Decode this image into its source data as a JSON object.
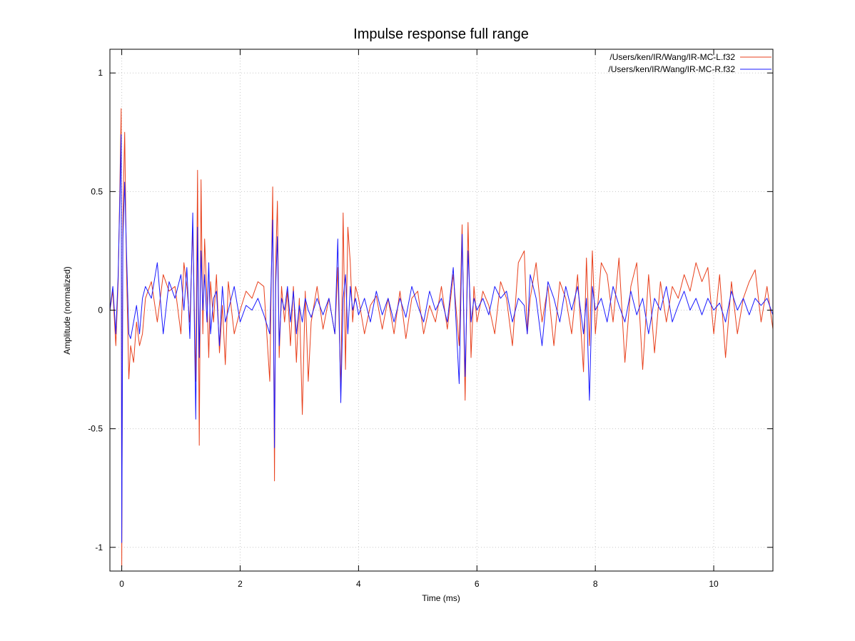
{
  "chart_data": {
    "type": "line",
    "title": "Impulse response full range",
    "xlabel": "Time (ms)",
    "ylabel": "Amplitude (normalized)",
    "xlim": [
      -0.2,
      11
    ],
    "ylim": [
      -1.1,
      1.1
    ],
    "xticks": [
      0,
      2,
      4,
      6,
      8,
      10
    ],
    "yticks": [
      1,
      0.5,
      0,
      -0.5,
      -1
    ],
    "ytick_labels": [
      "1",
      "0.5",
      "0",
      "-0.5",
      "-1"
    ],
    "grid": true,
    "legend_position": "top-right",
    "series": [
      {
        "name": "/Users/ken/IR/Wang/IR-MC-L.f32",
        "color": "#e8401c",
        "x": [
          -0.2,
          -0.15,
          -0.1,
          -0.06,
          -0.03,
          -0.01,
          0.0,
          0.02,
          0.05,
          0.08,
          0.12,
          0.15,
          0.2,
          0.25,
          0.3,
          0.35,
          0.4,
          0.5,
          0.6,
          0.7,
          0.8,
          0.9,
          1.0,
          1.05,
          1.1,
          1.15,
          1.2,
          1.25,
          1.28,
          1.31,
          1.34,
          1.37,
          1.4,
          1.44,
          1.47,
          1.5,
          1.55,
          1.6,
          1.65,
          1.7,
          1.75,
          1.8,
          1.9,
          2.0,
          2.1,
          2.2,
          2.3,
          2.4,
          2.5,
          2.55,
          2.58,
          2.6,
          2.63,
          2.66,
          2.7,
          2.75,
          2.8,
          2.85,
          2.9,
          2.95,
          3.0,
          3.05,
          3.1,
          3.15,
          3.2,
          3.3,
          3.4,
          3.5,
          3.6,
          3.65,
          3.7,
          3.74,
          3.78,
          3.82,
          3.86,
          3.9,
          3.95,
          4.0,
          4.1,
          4.2,
          4.3,
          4.4,
          4.5,
          4.6,
          4.7,
          4.8,
          4.9,
          5.0,
          5.1,
          5.2,
          5.3,
          5.4,
          5.5,
          5.6,
          5.7,
          5.75,
          5.8,
          5.85,
          5.9,
          5.95,
          6.0,
          6.1,
          6.2,
          6.3,
          6.4,
          6.5,
          6.6,
          6.7,
          6.8,
          6.85,
          6.9,
          7.0,
          7.1,
          7.2,
          7.3,
          7.4,
          7.5,
          7.6,
          7.7,
          7.8,
          7.85,
          7.9,
          7.95,
          8.0,
          8.1,
          8.2,
          8.3,
          8.4,
          8.5,
          8.6,
          8.7,
          8.8,
          8.9,
          9.0,
          9.1,
          9.2,
          9.3,
          9.4,
          9.5,
          9.6,
          9.7,
          9.8,
          9.9,
          10.0,
          10.1,
          10.2,
          10.3,
          10.4,
          10.5,
          10.6,
          10.7,
          10.8,
          10.9,
          11.0
        ],
        "y": [
          0.0,
          0.08,
          -0.15,
          0.12,
          0.55,
          0.85,
          -1.08,
          0.4,
          0.75,
          0.18,
          -0.29,
          -0.15,
          -0.22,
          -0.05,
          -0.15,
          -0.1,
          0.05,
          0.12,
          -0.05,
          0.15,
          0.08,
          0.1,
          -0.1,
          0.2,
          0.1,
          -0.05,
          0.35,
          -0.3,
          0.59,
          -0.57,
          0.55,
          -0.1,
          0.3,
          0.05,
          -0.2,
          0.12,
          -0.05,
          0.15,
          -0.18,
          0.02,
          -0.23,
          0.12,
          -0.1,
          0.0,
          0.08,
          0.05,
          0.12,
          0.1,
          -0.3,
          0.52,
          -0.72,
          0.2,
          0.46,
          -0.2,
          0.1,
          -0.05,
          0.08,
          -0.15,
          0.1,
          -0.22,
          0.05,
          -0.44,
          0.08,
          -0.3,
          -0.05,
          0.1,
          -0.08,
          0.05,
          -0.1,
          0.18,
          -0.35,
          0.41,
          -0.25,
          0.35,
          0.2,
          -0.05,
          0.1,
          0.05,
          -0.1,
          0.02,
          0.06,
          -0.08,
          0.05,
          -0.1,
          0.08,
          -0.12,
          0.05,
          0.08,
          -0.1,
          0.02,
          -0.05,
          0.1,
          -0.08,
          0.15,
          -0.15,
          0.36,
          -0.38,
          0.37,
          -0.2,
          0.1,
          -0.05,
          0.08,
          0.02,
          -0.1,
          0.12,
          0.05,
          -0.15,
          0.2,
          0.25,
          -0.1,
          0.05,
          0.2,
          -0.05,
          0.1,
          -0.15,
          0.12,
          0.05,
          -0.1,
          0.15,
          -0.26,
          0.22,
          -0.15,
          0.25,
          -0.1,
          0.2,
          0.15,
          -0.05,
          0.22,
          -0.22,
          0.1,
          0.2,
          -0.25,
          0.15,
          -0.18,
          0.12,
          -0.05,
          0.1,
          0.05,
          0.15,
          0.08,
          0.2,
          0.12,
          0.18,
          -0.1,
          0.15,
          -0.2,
          0.12,
          -0.1,
          0.05,
          0.12,
          0.17,
          -0.05,
          0.1,
          -0.08
        ]
      },
      {
        "name": "/Users/ken/IR/Wang/IR-MC-R.f32",
        "color": "#1a1aff",
        "x": [
          -0.2,
          -0.15,
          -0.1,
          -0.06,
          -0.03,
          -0.01,
          0.0,
          0.02,
          0.05,
          0.08,
          0.12,
          0.15,
          0.2,
          0.25,
          0.3,
          0.35,
          0.4,
          0.5,
          0.6,
          0.7,
          0.8,
          0.9,
          1.0,
          1.05,
          1.1,
          1.15,
          1.2,
          1.25,
          1.28,
          1.31,
          1.34,
          1.37,
          1.4,
          1.44,
          1.47,
          1.5,
          1.55,
          1.6,
          1.65,
          1.7,
          1.75,
          1.8,
          1.9,
          2.0,
          2.1,
          2.2,
          2.3,
          2.4,
          2.5,
          2.55,
          2.58,
          2.6,
          2.63,
          2.66,
          2.7,
          2.75,
          2.8,
          2.85,
          2.9,
          2.95,
          3.0,
          3.05,
          3.1,
          3.15,
          3.2,
          3.3,
          3.4,
          3.5,
          3.6,
          3.65,
          3.7,
          3.74,
          3.78,
          3.82,
          3.86,
          3.9,
          3.95,
          4.0,
          4.1,
          4.2,
          4.3,
          4.4,
          4.5,
          4.6,
          4.7,
          4.8,
          4.9,
          5.0,
          5.1,
          5.2,
          5.3,
          5.4,
          5.5,
          5.6,
          5.7,
          5.75,
          5.8,
          5.85,
          5.9,
          5.95,
          6.0,
          6.1,
          6.2,
          6.3,
          6.4,
          6.5,
          6.6,
          6.7,
          6.8,
          6.85,
          6.9,
          7.0,
          7.1,
          7.2,
          7.3,
          7.4,
          7.5,
          7.6,
          7.7,
          7.8,
          7.85,
          7.9,
          7.95,
          8.0,
          8.1,
          8.2,
          8.3,
          8.4,
          8.5,
          8.6,
          8.7,
          8.8,
          8.9,
          9.0,
          9.1,
          9.2,
          9.3,
          9.4,
          9.5,
          9.6,
          9.7,
          9.8,
          9.9,
          10.0,
          10.1,
          10.2,
          10.3,
          10.4,
          10.5,
          10.6,
          10.7,
          10.8,
          10.9,
          11.0
        ],
        "y": [
          0.0,
          0.1,
          -0.1,
          0.15,
          0.5,
          0.74,
          -0.98,
          0.3,
          0.54,
          0.25,
          -0.1,
          -0.12,
          -0.05,
          0.02,
          -0.1,
          0.05,
          0.1,
          0.05,
          0.2,
          -0.1,
          0.12,
          0.05,
          0.15,
          0.0,
          0.18,
          -0.12,
          0.41,
          -0.46,
          0.35,
          -0.2,
          0.25,
          0.0,
          0.15,
          -0.05,
          0.2,
          -0.1,
          0.05,
          0.08,
          -0.15,
          0.1,
          -0.05,
          0.0,
          0.1,
          -0.05,
          0.02,
          0.0,
          0.05,
          -0.02,
          -0.1,
          0.38,
          -0.58,
          0.1,
          0.31,
          -0.15,
          0.05,
          0.0,
          0.1,
          -0.05,
          0.08,
          -0.1,
          0.02,
          -0.05,
          0.05,
          0.0,
          -0.03,
          0.05,
          -0.02,
          0.05,
          -0.1,
          0.3,
          -0.39,
          0.05,
          0.15,
          -0.1,
          0.1,
          0.0,
          0.05,
          -0.02,
          0.05,
          -0.05,
          0.08,
          -0.02,
          0.05,
          -0.05,
          0.05,
          -0.03,
          0.1,
          0.02,
          -0.05,
          0.08,
          0.0,
          0.05,
          -0.05,
          0.18,
          -0.31,
          0.32,
          -0.28,
          0.25,
          -0.05,
          0.05,
          0.0,
          0.05,
          -0.02,
          0.1,
          0.05,
          0.08,
          -0.05,
          0.05,
          0.02,
          -0.1,
          0.15,
          0.05,
          -0.15,
          0.12,
          0.05,
          -0.05,
          0.1,
          0.0,
          0.1,
          -0.1,
          0.05,
          -0.38,
          0.1,
          0.0,
          0.05,
          -0.05,
          0.1,
          0.02,
          -0.05,
          0.08,
          -0.02,
          0.05,
          -0.1,
          0.05,
          0.0,
          0.1,
          -0.05,
          0.02,
          0.08,
          0.0,
          0.05,
          -0.02,
          0.05,
          0.0,
          0.03,
          -0.05,
          0.08,
          0.0,
          0.05,
          -0.02,
          0.05,
          0.02,
          0.05,
          -0.02
        ]
      }
    ]
  }
}
